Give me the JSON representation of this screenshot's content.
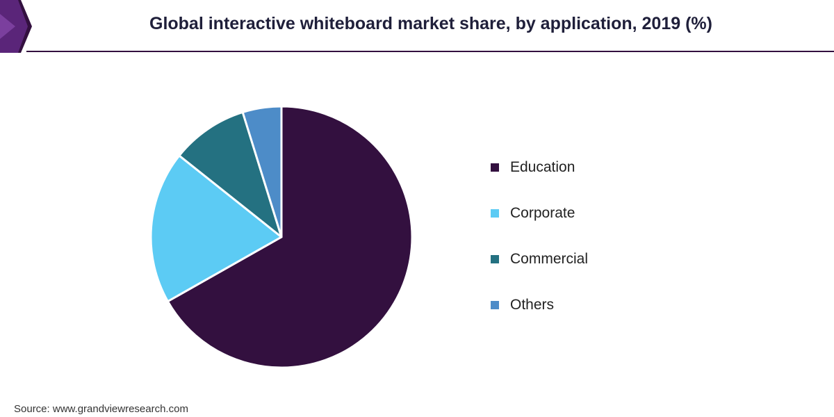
{
  "colors": {
    "education": "#33103f",
    "corporate": "#5ccbf4",
    "commercial": "#247181",
    "others": "#4d8cc8",
    "brand": "#33103f",
    "brand_accent": "#7b3f9e"
  },
  "source": "Source: www.grandviewresearch.com",
  "chart_data": {
    "type": "pie",
    "title": "Global interactive whiteboard market share, by application, 2019 (%)",
    "categories": [
      "Education",
      "Corporate",
      "Commercial",
      "Others"
    ],
    "values": [
      66.8,
      18.9,
      9.5,
      4.8
    ],
    "start": "12 o'clock, clockwise",
    "legend_position": "right"
  }
}
